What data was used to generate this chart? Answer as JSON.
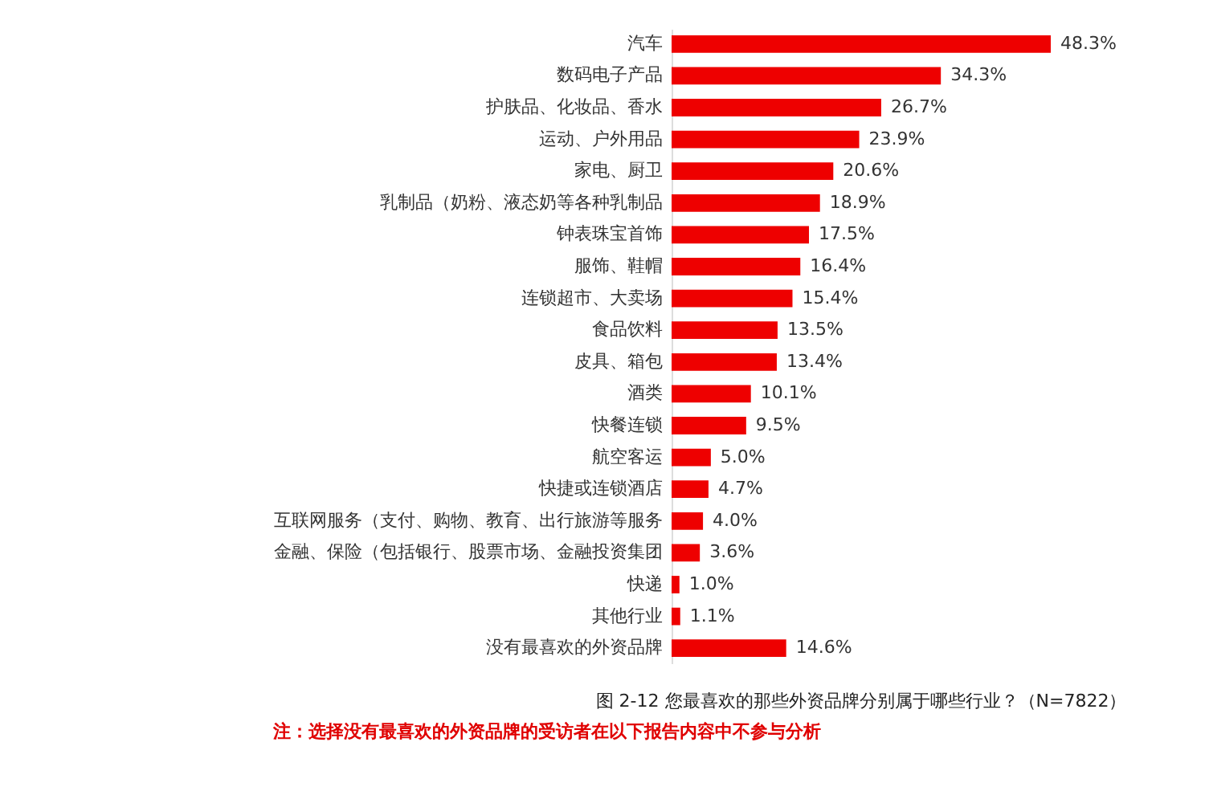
{
  "chart_data": {
    "type": "bar",
    "orientation": "horizontal",
    "title": "图 2-12 您最喜欢的那些外资品牌分别属于哪些行业？（N=7822）",
    "annotations": [
      "注：选择没有最喜欢的外资品牌的受访者在以下报告内容中不参与分析"
    ],
    "categories": [
      "汽车",
      "数码电子产品",
      "护肤品、化妆品、香水",
      "运动、户外用品",
      "家电、厨卫",
      "乳制品（奶粉、液态奶等各种乳制品",
      "钟表珠宝首饰",
      "服饰、鞋帽",
      "连锁超市、大卖场",
      "食品饮料",
      "皮具、箱包",
      "酒类",
      "快餐连锁",
      "航空客运",
      "快捷或连锁酒店",
      "互联网服务（支付、购物、教育、出行旅游等服务",
      "金融、保险（包括银行、股票市场、金融投资集团",
      "快递",
      "其他行业",
      "没有最喜欢的外资品牌"
    ],
    "values": [
      48.3,
      34.3,
      26.7,
      23.9,
      20.6,
      18.9,
      17.5,
      16.4,
      15.4,
      13.5,
      13.4,
      10.1,
      9.5,
      5.0,
      4.7,
      4.0,
      3.6,
      1.0,
      1.1,
      14.6
    ],
    "value_labels": [
      "48.3%",
      "34.3%",
      "26.7%",
      "23.9%",
      "20.6%",
      "18.9%",
      "17.5%",
      "16.4%",
      "15.4%",
      "13.5%",
      "13.4%",
      "10.1%",
      "9.5%",
      "5.0%",
      "4.7%",
      "4.0%",
      "3.6%",
      "1.0%",
      "1.1%",
      "14.6%"
    ],
    "color": "#ee0000"
  }
}
